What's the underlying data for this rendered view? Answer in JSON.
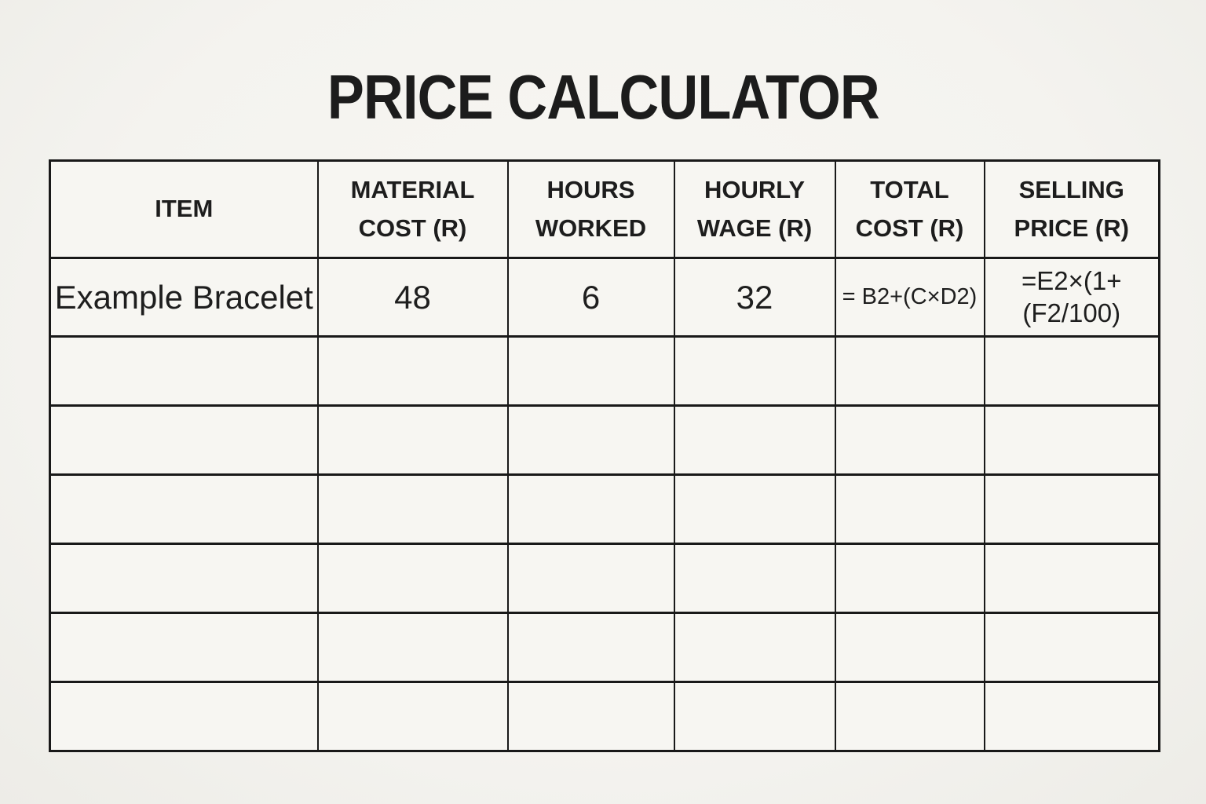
{
  "title": "PRICE CALCULATOR",
  "table": {
    "columns": [
      {
        "label": "ITEM"
      },
      {
        "label": "MATERIAL COST (R)"
      },
      {
        "label": "HOURS WORKED"
      },
      {
        "label": "HOURLY WAGE (R)"
      },
      {
        "label": "TOTAL COST (R)"
      },
      {
        "label": "SELLING PRICE (R)"
      }
    ],
    "example_row": {
      "item": "Example Bracelet",
      "material_cost": "48",
      "hours_worked": "6",
      "hourly_wage": "32",
      "total_cost_formula": "= B2+(C×D2)",
      "selling_price_formula_line1": "=E2×(1+",
      "selling_price_formula_line2": "(F2/100)"
    },
    "empty_row_count": 6
  },
  "colors": {
    "page_background": "#f4f3ef",
    "cell_background": "#f7f6f2",
    "border": "#191919",
    "text": "#1e1e1e"
  }
}
